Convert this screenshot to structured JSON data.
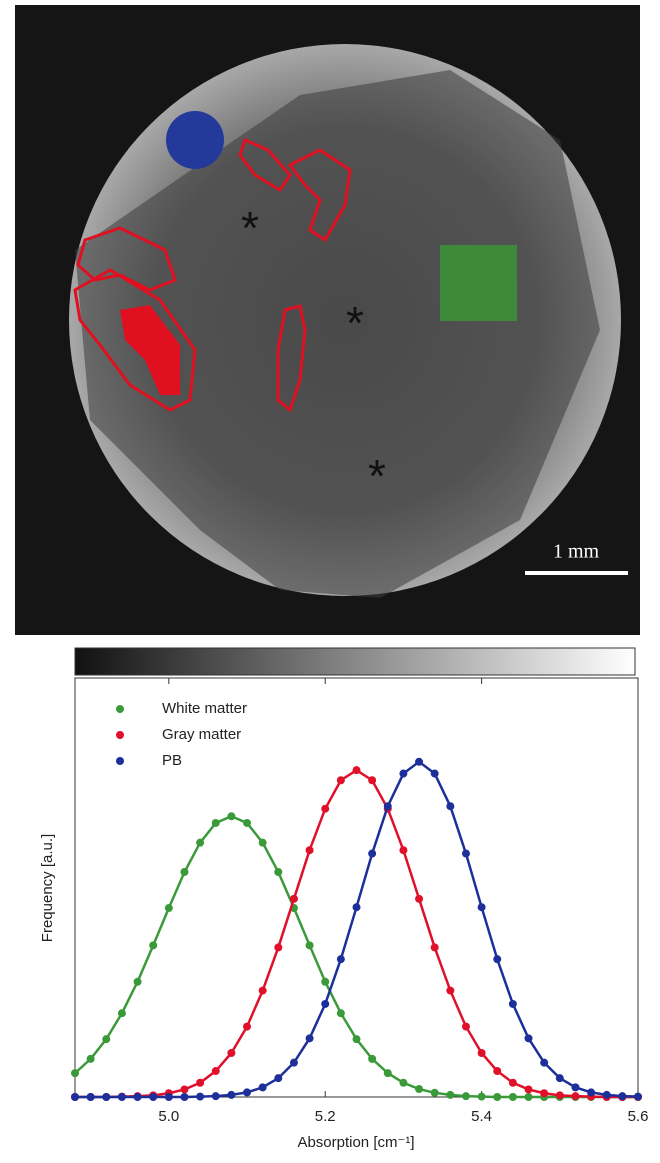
{
  "image": {
    "scale_bar": "1 mm",
    "markers": [
      "*",
      "*",
      "*"
    ]
  },
  "chart_data": {
    "type": "scatter",
    "x_label": "Absorption [cm⁻¹]",
    "y_label": "Frequency [a.u.]",
    "x": [
      4.88,
      4.9,
      4.92,
      4.94,
      4.96,
      4.98,
      5,
      5.02,
      5.04,
      5.06,
      5.08,
      5.1,
      5.12,
      5.14,
      5.16,
      5.18,
      5.2,
      5.22,
      5.24,
      5.26,
      5.28,
      5.3,
      5.32,
      5.34,
      5.36,
      5.38,
      5.4,
      5.42,
      5.44,
      5.46,
      5.48,
      5.5,
      5.52,
      5.54,
      5.56,
      5.58,
      5.6
    ],
    "series": [
      {
        "name": "White matter",
        "color": "#3a9a3a",
        "values": [
          0.057,
          0.091,
          0.138,
          0.2,
          0.275,
          0.362,
          0.451,
          0.537,
          0.607,
          0.654,
          0.67,
          0.654,
          0.607,
          0.537,
          0.451,
          0.362,
          0.275,
          0.2,
          0.138,
          0.091,
          0.057,
          0.034,
          0.019,
          0.01,
          0.005,
          0.002,
          0.001,
          0,
          0,
          0,
          0,
          0,
          0,
          0,
          0,
          0,
          0
        ]
      },
      {
        "name": "Gray matter",
        "color": "#e0102a",
        "values": [
          0,
          0,
          0,
          0.001,
          0.002,
          0.004,
          0.009,
          0.018,
          0.034,
          0.062,
          0.105,
          0.168,
          0.254,
          0.357,
          0.473,
          0.589,
          0.688,
          0.756,
          0.78,
          0.756,
          0.688,
          0.589,
          0.473,
          0.357,
          0.254,
          0.168,
          0.105,
          0.062,
          0.034,
          0.018,
          0.009,
          0.004,
          0.002,
          0.001,
          0,
          0,
          0
        ]
      },
      {
        "name": "PB",
        "color": "#1c2f9a",
        "values": [
          0,
          0,
          0,
          0,
          0,
          0,
          0,
          0,
          0.001,
          0.002,
          0.005,
          0.011,
          0.023,
          0.045,
          0.082,
          0.14,
          0.222,
          0.329,
          0.453,
          0.581,
          0.694,
          0.772,
          0.8,
          0.772,
          0.694,
          0.581,
          0.453,
          0.329,
          0.222,
          0.14,
          0.082,
          0.045,
          0.023,
          0.011,
          0.005,
          0.002,
          0.001
        ]
      }
    ],
    "xlim": [
      4.88,
      5.6
    ],
    "xticks": [
      {
        "value": 5,
        "label": "5.0"
      },
      5.2,
      5.4,
      5.6
    ],
    "ylim": [
      0,
      1
    ],
    "legend": "upper left",
    "lines": true
  }
}
